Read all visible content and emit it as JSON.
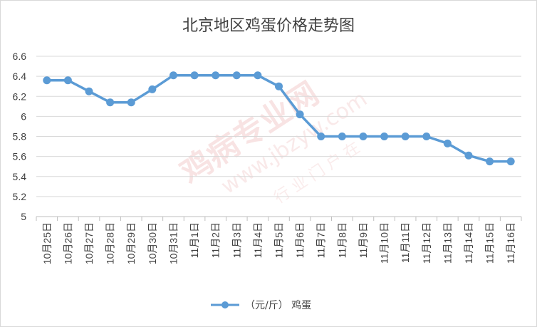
{
  "chart_data": {
    "type": "line",
    "title": "北京地区鸡蛋价格走势图",
    "categories": [
      "10月25日",
      "10月26日",
      "10月27日",
      "10月28日",
      "10月29日",
      "10月30日",
      "10月31日",
      "11月1日",
      "11月2日",
      "11月3日",
      "11月4日",
      "11月5日",
      "11月6日",
      "11月7日",
      "11月8日",
      "11月9日",
      "11月10日",
      "11月11日",
      "11月12日",
      "11月13日",
      "11月14日",
      "11月15日",
      "11月16日"
    ],
    "series": [
      {
        "name": "（元/斤） 鸡蛋",
        "color": "#5b9bd5",
        "values": [
          6.36,
          6.36,
          6.25,
          6.14,
          6.14,
          6.27,
          6.41,
          6.41,
          6.41,
          6.41,
          6.41,
          6.3,
          6.02,
          5.8,
          5.8,
          5.8,
          5.8,
          5.8,
          5.8,
          5.73,
          5.61,
          5.55,
          5.55
        ]
      }
    ],
    "ylim": [
      5,
      6.6
    ],
    "yticks": [
      "5",
      "5.2",
      "5.4",
      "5.6",
      "5.8",
      "6",
      "6.2",
      "6.4",
      "6.6"
    ],
    "grid": true,
    "legend_position": "bottom"
  },
  "watermark": {
    "brand": "鸡病专业网",
    "url": "www.jbzyw.com",
    "slogan": "行 业 门 户 在"
  }
}
